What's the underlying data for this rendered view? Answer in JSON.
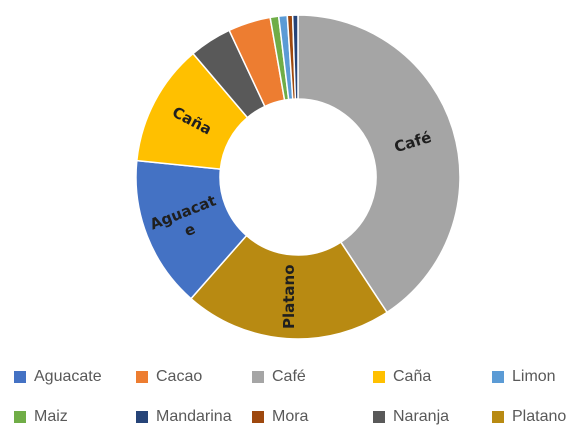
{
  "chart_data": {
    "type": "pie",
    "donut": true,
    "title": "",
    "categories": [
      "Café",
      "Platano",
      "Aguacate",
      "Caña",
      "Naranja",
      "Cacao",
      "Maiz",
      "Limon",
      "Mora",
      "Mandarina"
    ],
    "values": [
      38.5,
      19.6,
      14.3,
      11.5,
      4.0,
      4.0,
      0.8,
      0.8,
      0.5,
      0.5
    ],
    "unit": "%",
    "colors": [
      "#a5a5a5",
      "#b88a12",
      "#4472c4",
      "#ffc000",
      "#595959",
      "#ed7d31",
      "#70ad47",
      "#5b9bd5",
      "#9e480e",
      "#264478"
    ],
    "slice_labels": {
      "Café": "Café",
      "Platano": "Platano",
      "Aguacate": "Aguacat e",
      "Caña": "Caña"
    },
    "legend": {
      "position": "bottom",
      "entries": [
        {
          "label": "Aguacate",
          "color": "#4472c4"
        },
        {
          "label": "Cacao",
          "color": "#ed7d31"
        },
        {
          "label": "Café",
          "color": "#a5a5a5"
        },
        {
          "label": "Caña",
          "color": "#ffc000"
        },
        {
          "label": "Limon",
          "color": "#5b9bd5"
        },
        {
          "label": "Maiz",
          "color": "#70ad47"
        },
        {
          "label": "Mandarina",
          "color": "#264478"
        },
        {
          "label": "Mora",
          "color": "#9e480e"
        },
        {
          "label": "Naranja",
          "color": "#595959"
        },
        {
          "label": "Platano",
          "color": "#b88a12"
        }
      ]
    }
  }
}
